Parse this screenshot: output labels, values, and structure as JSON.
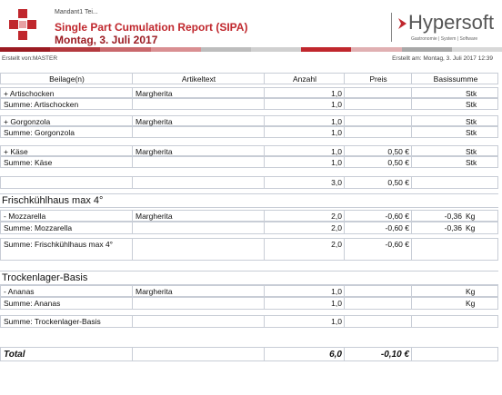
{
  "header": {
    "mandant": "Mandant1 Tei...",
    "title": "Single Part Cumulation Report (SIPA)",
    "date": "Montag, 3. Juli 2017",
    "logo": "Hypersoft",
    "tagline": "Gastronomie | System | Software",
    "created_by": "Erstellt von:MASTER",
    "created_at": "Erstellt am: Montag, 3. Juli 2017 12:39"
  },
  "table": {
    "columns": [
      "Beilage(n)",
      "Artikeltext",
      "Anzahl",
      "Preis",
      "Basissumme"
    ],
    "rows": [
      [
        "+ Artischocken",
        "Margherita",
        "1,0",
        null,
        null,
        "Stk"
      ],
      [
        "Summe: Artischocken",
        null,
        "1,0",
        null,
        null,
        "Stk"
      ],
      [
        "+ Gorgonzola",
        "Margherita",
        "1,0",
        null,
        null,
        "Stk"
      ],
      [
        "Summe: Gorgonzola",
        null,
        "1,0",
        null,
        null,
        "Stk"
      ],
      [
        "+ Käse",
        "Margherita",
        "1,0",
        "0,50 €",
        null,
        "Stk"
      ],
      [
        "Summe: Käse",
        null,
        "1,0",
        "0,50 €",
        null,
        "Stk"
      ],
      [
        null,
        null,
        "3,0",
        "0,50 €",
        null,
        null
      ],
      "Frischkühlhaus max 4°",
      [
        "- Mozzarella",
        "Margherita",
        "2,0",
        "-0,60 €",
        "-0,36",
        "Kg"
      ],
      [
        "Summe: Mozzarella",
        null,
        "2,0",
        "-0,60 €",
        "-0,36",
        "Kg"
      ],
      [
        "Summe: Frischkühlhaus max 4°",
        null,
        "2,0",
        "-0,60 €",
        null,
        null
      ],
      "Trockenlager-Basis",
      [
        "- Ananas",
        "Margherita",
        "1,0",
        null,
        null,
        "Kg"
      ],
      [
        "Summe: Ananas",
        null,
        "1,0",
        null,
        null,
        "Kg"
      ],
      [
        "Summe: Trockenlager-Basis",
        null,
        "1,0",
        null,
        null,
        null
      ]
    ],
    "total": [
      "Total",
      null,
      "6,0",
      "-0,10 €",
      null,
      null
    ]
  }
}
